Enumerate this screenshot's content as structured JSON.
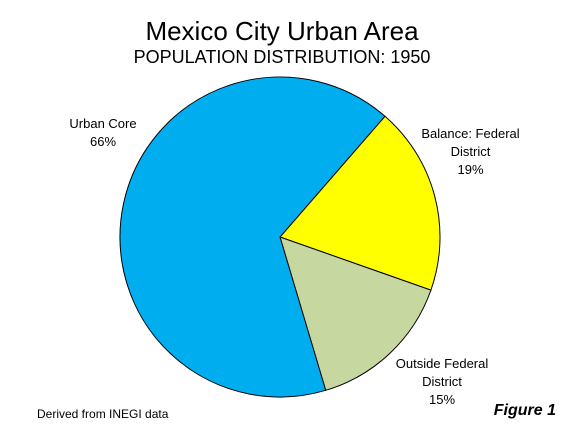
{
  "chart_data": {
    "type": "pie",
    "title": "Mexico City Urban Area",
    "subtitle": "POPULATION DISTRIBUTION: 1950",
    "categories": [
      "Balance: Federal District",
      "Outside Federal District",
      "Urban Core"
    ],
    "values": [
      19,
      15,
      66
    ],
    "value_labels": [
      "19%",
      "15%",
      "66%"
    ],
    "colors": [
      "#ffff00",
      "#c6d89f",
      "#00aeef"
    ],
    "source": "Derived from INEGI data",
    "figure_label": "Figure 1"
  }
}
